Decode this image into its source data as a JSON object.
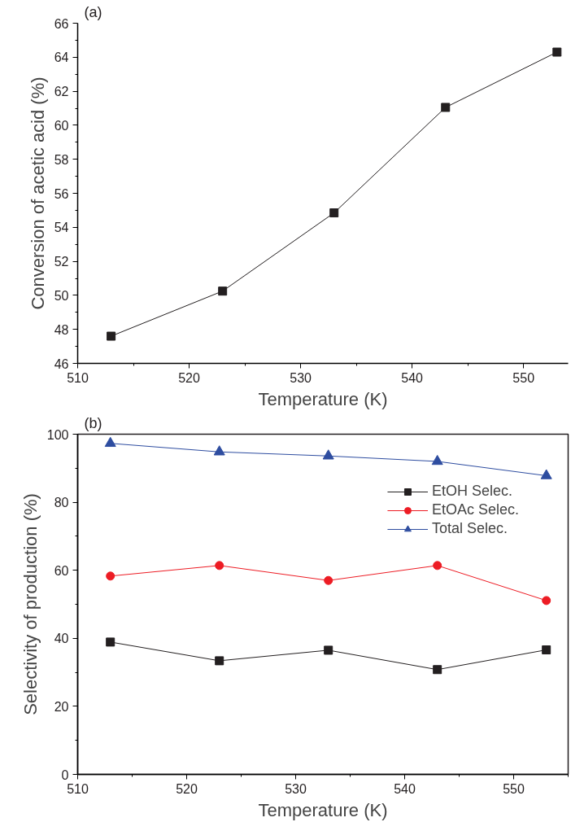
{
  "chart_data": [
    {
      "type": "line",
      "annotations": [
        "(a)"
      ],
      "xlabel": "Temperature (K)",
      "ylabel": "Conversion of acetic acid (%)",
      "x": [
        513,
        523,
        533,
        543,
        553
      ],
      "xlim": [
        510,
        554
      ],
      "xticks": [
        510,
        520,
        530,
        540,
        550
      ],
      "ylim": [
        46,
        66
      ],
      "yticks": [
        46,
        48,
        50,
        52,
        54,
        56,
        58,
        60,
        62,
        64,
        66
      ],
      "grid": false,
      "legend": false,
      "marker": "square",
      "line_style": "solid",
      "series": [
        {
          "color": "#231f20",
          "values": [
            47.6,
            50.25,
            54.85,
            61.05,
            64.3
          ]
        }
      ]
    },
    {
      "type": "line",
      "annotations": [
        "(b)"
      ],
      "xlabel": "Temperature (K)",
      "ylabel": "Selectivity of production (%)",
      "x": [
        513,
        523,
        533,
        543,
        553
      ],
      "xlim": [
        510,
        555
      ],
      "xticks": [
        510,
        520,
        530,
        540,
        550
      ],
      "ylim": [
        0,
        100
      ],
      "yticks": [
        0,
        20,
        40,
        60,
        80,
        100
      ],
      "grid": false,
      "legend": "top right",
      "line_style": "solid",
      "series": [
        {
          "name": "EtOH Selec.",
          "color": "#231f20",
          "marker": "square",
          "values": [
            38.9,
            33.4,
            36.5,
            30.8,
            36.6
          ]
        },
        {
          "name": "EtOAc Selec.",
          "color": "#ed1c24",
          "marker": "circle",
          "values": [
            58.3,
            61.4,
            57.0,
            61.4,
            51.1
          ]
        },
        {
          "name": "Total Selec.",
          "color": "#2e4da0",
          "marker": "triangle",
          "values": [
            97.3,
            94.8,
            93.6,
            92.0,
            87.8
          ]
        }
      ]
    }
  ]
}
